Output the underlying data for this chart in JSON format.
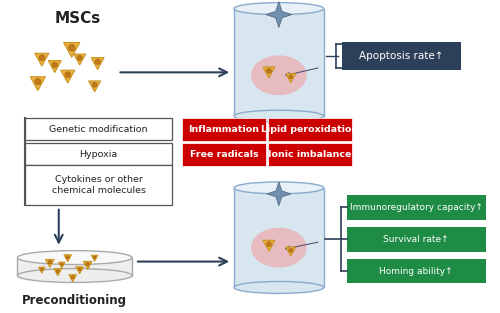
{
  "bg_color": "#ffffff",
  "mscs_label": "MSCs",
  "preconditioning_label": "Preconditioning",
  "apoptosis_box": {
    "text": "Apoptosis rate↑",
    "color": "#2d4059",
    "text_color": "#ffffff"
  },
  "red_boxes": [
    {
      "text": "Inflammation",
      "color": "#cc0000",
      "text_color": "#ffffff"
    },
    {
      "text": "Lipid peroxidation",
      "color": "#cc0000",
      "text_color": "#ffffff"
    },
    {
      "text": "Free radicals",
      "color": "#cc0000",
      "text_color": "#ffffff"
    },
    {
      "text": "Ionic imbalance",
      "color": "#cc0000",
      "text_color": "#ffffff"
    }
  ],
  "left_boxes": [
    {
      "text": "Genetic modification"
    },
    {
      "text": "Hypoxia"
    },
    {
      "text": "Cytokines or other\nchemical molecules"
    }
  ],
  "green_boxes": [
    {
      "text": "Immunoregulatory capacity↑",
      "color": "#1e8c45",
      "text_color": "#ffffff"
    },
    {
      "text": "Survival rate↑",
      "color": "#1e8c45",
      "text_color": "#ffffff"
    },
    {
      "text": "Homing ability↑",
      "color": "#1e8c45",
      "text_color": "#ffffff"
    }
  ],
  "cylinder_body_color": "#d8e6f0",
  "cylinder_rim_color": "#8aabcc",
  "cylinder_top_color": "#e8f0f8",
  "glow_color": "#f0a0a0",
  "msc_cell_color": "#e8b040",
  "arrow_color": "#2d4059",
  "star_color": "#7090b0",
  "dish_color": "#e0e0e0",
  "dish_edge_color": "#aaaaaa"
}
